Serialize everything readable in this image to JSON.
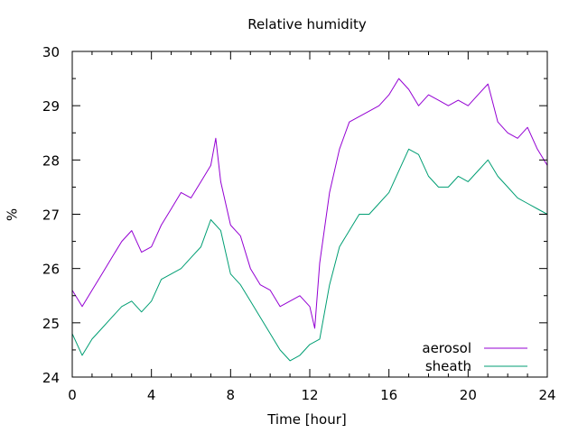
{
  "chart_data": {
    "type": "line",
    "title": "Relative humidity",
    "xlabel": "Time [hour]",
    "ylabel": "%",
    "xlim": [
      0,
      24
    ],
    "ylim": [
      24,
      30
    ],
    "xticks": [
      0,
      4,
      8,
      12,
      16,
      20,
      24
    ],
    "yticks": [
      24,
      25,
      26,
      27,
      28,
      29,
      30
    ],
    "grid": false,
    "legend_position": "bottom-right",
    "series": [
      {
        "name": "aerosol",
        "color": "#9400d3",
        "x": [
          0,
          0.5,
          1,
          1.5,
          2,
          2.5,
          3,
          3.5,
          4,
          4.5,
          5,
          5.5,
          6,
          6.5,
          7,
          7.25,
          7.5,
          8,
          8.5,
          9,
          9.5,
          10,
          10.5,
          11,
          11.5,
          12,
          12.25,
          12.5,
          13,
          13.5,
          14,
          14.5,
          15,
          15.5,
          16,
          16.5,
          17,
          17.5,
          18,
          18.5,
          19,
          19.5,
          20,
          20.5,
          21,
          21.5,
          22,
          22.5,
          23,
          23.5,
          24
        ],
        "y": [
          25.6,
          25.3,
          25.6,
          25.9,
          26.2,
          26.5,
          26.7,
          26.3,
          26.4,
          26.8,
          27.1,
          27.4,
          27.3,
          27.6,
          27.9,
          28.4,
          27.6,
          26.8,
          26.6,
          26.0,
          25.7,
          25.6,
          25.3,
          25.4,
          25.5,
          25.3,
          24.9,
          26.1,
          27.4,
          28.2,
          28.7,
          28.8,
          28.9,
          29.0,
          29.2,
          29.5,
          29.3,
          29.0,
          29.2,
          29.1,
          29.0,
          29.1,
          29.0,
          29.2,
          29.4,
          28.7,
          28.5,
          28.4,
          28.6,
          28.2,
          27.9
        ]
      },
      {
        "name": "sheath",
        "color": "#009e73",
        "x": [
          0,
          0.5,
          1,
          1.5,
          2,
          2.5,
          3,
          3.5,
          4,
          4.5,
          5,
          5.5,
          6,
          6.5,
          7,
          7.5,
          8,
          8.5,
          9,
          9.5,
          10,
          10.5,
          11,
          11.5,
          12,
          12.5,
          13,
          13.5,
          14,
          14.5,
          15,
          15.5,
          16,
          16.5,
          17,
          17.5,
          18,
          18.5,
          19,
          19.5,
          20,
          20.5,
          21,
          21.5,
          22,
          22.5,
          23,
          23.5,
          24
        ],
        "y": [
          24.8,
          24.4,
          24.7,
          24.9,
          25.1,
          25.3,
          25.4,
          25.2,
          25.4,
          25.8,
          25.9,
          26.0,
          26.2,
          26.4,
          26.9,
          26.7,
          25.9,
          25.7,
          25.4,
          25.1,
          24.8,
          24.5,
          24.3,
          24.4,
          24.6,
          24.7,
          25.7,
          26.4,
          26.7,
          27.0,
          27.0,
          27.2,
          27.4,
          27.8,
          28.2,
          28.1,
          27.7,
          27.5,
          27.5,
          27.7,
          27.6,
          27.8,
          28.0,
          27.7,
          27.5,
          27.3,
          27.2,
          27.1,
          27.0
        ]
      }
    ]
  }
}
